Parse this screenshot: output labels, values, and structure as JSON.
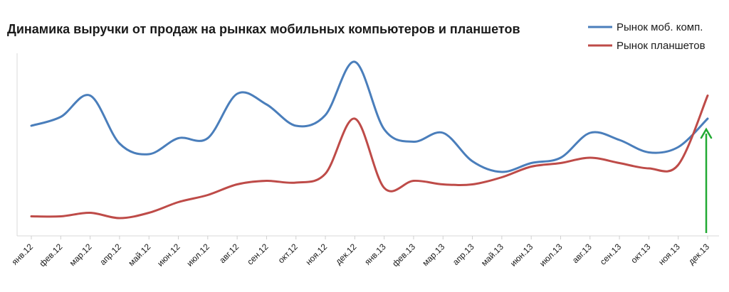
{
  "chart_data": {
    "type": "line",
    "title": "Динамика выручки от продаж на рынках мобильных компьютеров  и планшетов",
    "xlabel": "",
    "ylabel": "",
    "grid": false,
    "legend_position": "top-right",
    "ylim": [
      0,
      100
    ],
    "categories": [
      "янв.12",
      "фев.12",
      "мар.12",
      "апр.12",
      "май.12",
      "июн.12",
      "июл.12",
      "авг.12",
      "сен.12",
      "окт.12",
      "ноя.12",
      "дек.12",
      "янв.13",
      "фев.13",
      "мар.13",
      "апр.13",
      "май.13",
      "июн.13",
      "июл.13",
      "авг.13",
      "сен.13",
      "окт.13",
      "ноя.13",
      "дек.13"
    ],
    "series": [
      {
        "name": "Рынок моб. комп.",
        "color": "#4a7ebb",
        "values": [
          62,
          67,
          79,
          52,
          46,
          55,
          55,
          80,
          74,
          62,
          68,
          98,
          60,
          53,
          58,
          42,
          36,
          41,
          44,
          58,
          54,
          47,
          50,
          66
        ]
      },
      {
        "name": "Рынок планшетов",
        "color": "#be4b48",
        "values": [
          11,
          11,
          13,
          10,
          13,
          19,
          23,
          29,
          31,
          30,
          35,
          66,
          27,
          31,
          29,
          29,
          33,
          39,
          41,
          44,
          41,
          38,
          40,
          79
        ]
      }
    ],
    "annotations": [
      {
        "type": "arrow",
        "color": "#22aa33",
        "category": "дек.13",
        "direction": "up",
        "from_y": 0,
        "to_y": 60
      }
    ]
  }
}
